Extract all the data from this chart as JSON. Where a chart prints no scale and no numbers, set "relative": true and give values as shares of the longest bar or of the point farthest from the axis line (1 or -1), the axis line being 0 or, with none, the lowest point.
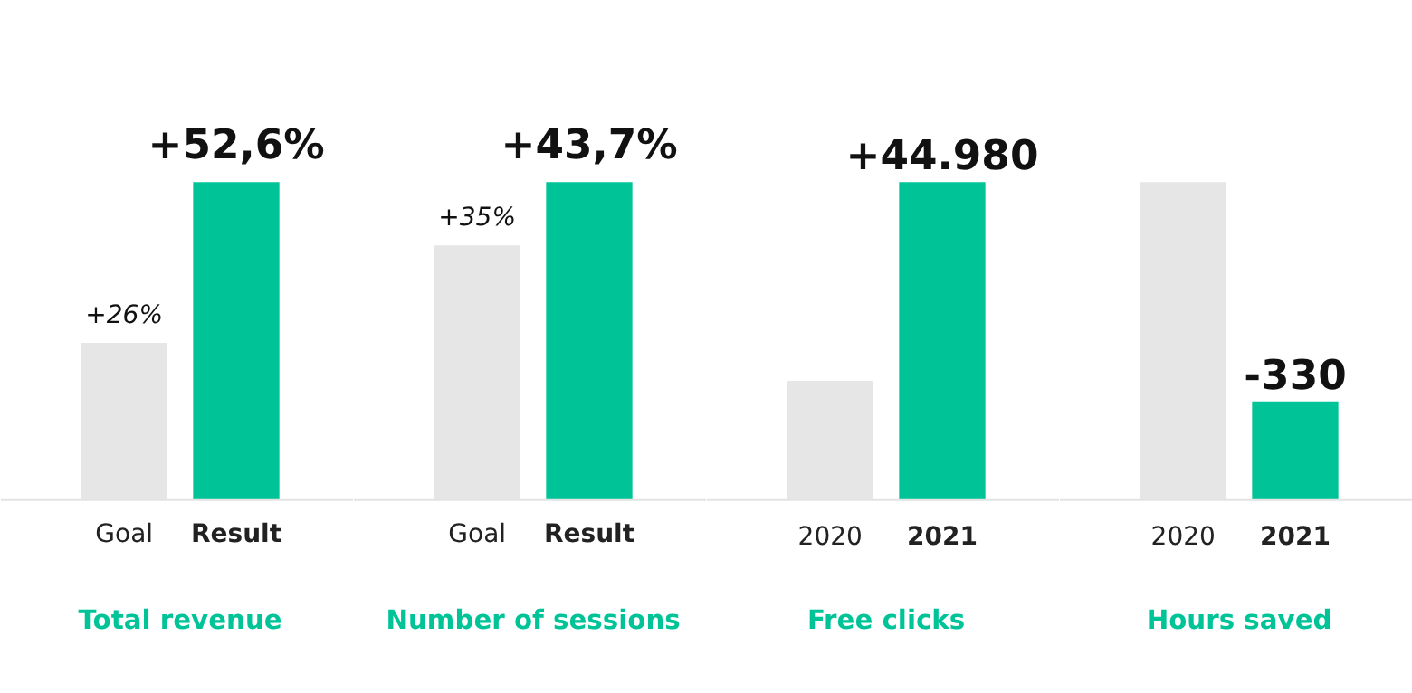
{
  "chart_data": [
    {
      "type": "bar",
      "xlabel": "Total revenue",
      "categories": [
        "Goal",
        "Result"
      ],
      "values": [
        26,
        52.6
      ],
      "colors": [
        "#e6e6e6",
        "#00c497"
      ],
      "value_labels": [
        "+26%",
        "+52,6%"
      ],
      "tick_labels": "x"
    },
    {
      "type": "bar",
      "xlabel": "Number of sessions",
      "categories": [
        "Goal",
        "Result"
      ],
      "values": [
        35,
        43.7
      ],
      "colors": [
        "#e6e6e6",
        "#00c497"
      ],
      "value_labels": [
        "+35%",
        "+43,7%"
      ],
      "tick_labels": "x"
    },
    {
      "type": "bar",
      "relative": true,
      "xlabel": "Free clicks",
      "categories": [
        "2020",
        "2021"
      ],
      "values": [
        0.375,
        1
      ],
      "colors": [
        "#e6e6e6",
        "#00c497"
      ],
      "annotations": [
        {
          "text": "+44.980",
          "x": "2021",
          "y": 1
        }
      ]
    },
    {
      "type": "bar",
      "relative": true,
      "xlabel": "Hours saved",
      "categories": [
        "2020",
        "2021"
      ],
      "values": [
        1,
        0.31
      ],
      "colors": [
        "#e6e6e6",
        "#00c497"
      ],
      "annotations": [
        {
          "text": "-330",
          "x": "2021",
          "y": 0.31
        }
      ]
    }
  ]
}
